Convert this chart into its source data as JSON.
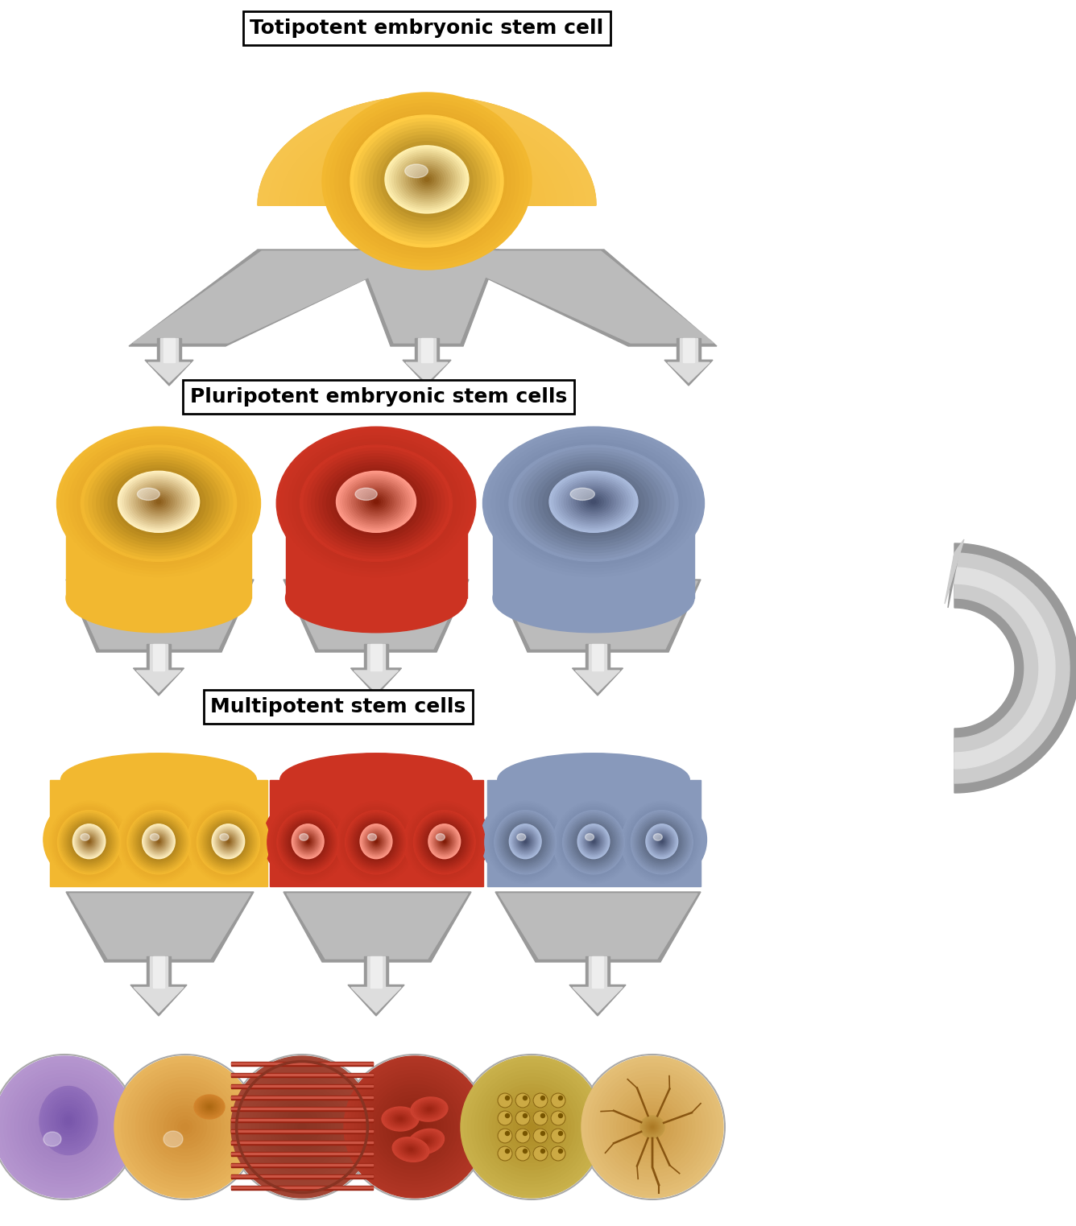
{
  "bg_color": "#ffffff",
  "labels": {
    "totipotent": "Totipotent embryonic stem cell",
    "pluripotent": "Pluripotent embryonic stem cells",
    "multipotent": "Multipotent stem cells"
  },
  "colors": {
    "yellow_cell": "#F2B830",
    "yellow_dark": "#D4950A",
    "yellow_light": "#FFE090",
    "red_cell": "#CC3322",
    "red_dark": "#AA1100",
    "red_light": "#FF9988",
    "blue_cell": "#8899BB",
    "blue_dark": "#556688",
    "blue_light": "#BBCCEE",
    "gray_outer": "#999999",
    "gray_inner": "#DDDDDD",
    "gray_mid": "#BBBBBB",
    "white": "#ffffff",
    "black": "#111111"
  },
  "figsize": [
    13.36,
    15.23
  ],
  "dpi": 100
}
